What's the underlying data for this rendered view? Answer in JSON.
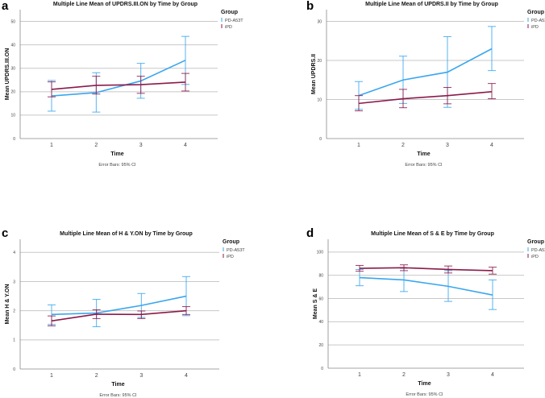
{
  "chart_data": [
    {
      "panel": "a",
      "type": "line",
      "title": "Multiple Line Mean of UPDRS.III.ON by Time by Group",
      "xlabel": "Time",
      "ylabel": "Mean UPDRS.III.ON",
      "note": "Error Bars: 95% CI",
      "legend_title": "Group",
      "legend_position": "right",
      "grid": true,
      "categories": [
        "1",
        "2",
        "3",
        "4"
      ],
      "yticks": [
        0,
        10,
        20,
        30,
        40,
        50
      ],
      "ylim": [
        0,
        55
      ],
      "series": [
        {
          "name": "PD-A53T",
          "color": "#3aa6ee",
          "values": [
            18.2,
            19.6,
            24.6,
            33.4
          ],
          "ci_low": [
            11.7,
            11.3,
            17.2,
            23.1
          ],
          "ci_high": [
            24.8,
            28.1,
            32.1,
            43.6
          ]
        },
        {
          "name": "iPD",
          "color": "#8b1a4a",
          "values": [
            21.0,
            22.7,
            23.0,
            24.1
          ],
          "ci_low": [
            17.8,
            19.0,
            19.3,
            20.3
          ],
          "ci_high": [
            24.2,
            26.6,
            26.6,
            27.8
          ]
        }
      ]
    },
    {
      "panel": "b",
      "type": "line",
      "title": "Multiple Line Mean of UPDRS.II by Time by Group",
      "xlabel": "Time",
      "ylabel": "Mean UPDRS.II",
      "note": "Error Bars: 95% CI",
      "legend_title": "Group",
      "legend_position": "right",
      "grid": true,
      "categories": [
        "1",
        "2",
        "3",
        "4"
      ],
      "yticks": [
        0,
        10,
        20,
        30
      ],
      "ylim": [
        0,
        33
      ],
      "series": [
        {
          "name": "PD-A53T",
          "color": "#3aa6ee",
          "values": [
            11.0,
            15.0,
            17.0,
            23.0
          ],
          "ci_low": [
            7.5,
            9.0,
            8.0,
            17.4
          ],
          "ci_high": [
            14.6,
            21.1,
            26.1,
            28.7
          ]
        },
        {
          "name": "iPD",
          "color": "#8b1a4a",
          "values": [
            9.0,
            10.2,
            11.0,
            12.0
          ],
          "ci_low": [
            7.1,
            7.9,
            8.9,
            10.2
          ],
          "ci_high": [
            11.0,
            12.6,
            13.1,
            14.1
          ]
        }
      ]
    },
    {
      "panel": "c",
      "type": "line",
      "title": "Multiple Line Mean of H & Y.ON by Time by Group",
      "xlabel": "Time",
      "ylabel": "Mean H & Y.ON",
      "note": "Error Bars: 95% CI",
      "legend_title": "Group",
      "legend_position": "right",
      "grid": true,
      "categories": [
        "1",
        "2",
        "3",
        "4"
      ],
      "yticks": [
        0,
        1,
        2,
        3,
        4
      ],
      "ylim": [
        0,
        4.45
      ],
      "series": [
        {
          "name": "PD-A53T",
          "color": "#3aa6ee",
          "values": [
            1.87,
            1.92,
            2.18,
            2.5
          ],
          "ci_low": [
            1.53,
            1.45,
            1.77,
            1.83
          ],
          "ci_high": [
            2.2,
            2.39,
            2.59,
            3.17
          ]
        },
        {
          "name": "iPD",
          "color": "#8b1a4a",
          "values": [
            1.65,
            1.88,
            1.87,
            2.0
          ],
          "ci_low": [
            1.48,
            1.73,
            1.73,
            1.87
          ],
          "ci_high": [
            1.82,
            2.03,
            1.99,
            2.14
          ]
        }
      ]
    },
    {
      "panel": "d",
      "type": "line",
      "title": "Multiple Line Mean of S & E by Time by Group",
      "xlabel": "Time",
      "ylabel": "Mean S & E",
      "note": "Error Bars: 95% CI",
      "legend_title": "Group",
      "legend_position": "right",
      "grid": true,
      "categories": [
        "1",
        "2",
        "3",
        "4"
      ],
      "yticks": [
        0,
        20,
        40,
        60,
        80,
        100
      ],
      "ylim": [
        0,
        111
      ],
      "series": [
        {
          "name": "PD-A53T",
          "color": "#3aa6ee",
          "values": [
            78,
            76,
            70.5,
            63
          ],
          "ci_low": [
            71,
            66,
            57.5,
            50.5
          ],
          "ci_high": [
            85,
            86,
            84,
            76
          ]
        },
        {
          "name": "iPD",
          "color": "#8b1a4a",
          "values": [
            86,
            86.5,
            85,
            84
          ],
          "ci_low": [
            83.5,
            84,
            82,
            81
          ],
          "ci_high": [
            88.5,
            89,
            88,
            87
          ]
        }
      ]
    }
  ]
}
